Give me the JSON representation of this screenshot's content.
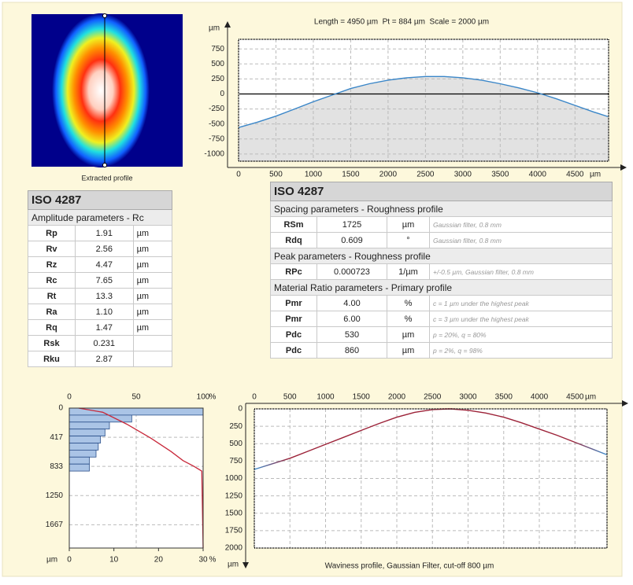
{
  "heatmap": {
    "caption": "Extracted profile"
  },
  "amplitude_table": {
    "title": "ISO 4287",
    "subtitle": "Amplitude parameters - Rc",
    "rows": [
      [
        "Rp",
        "1.91",
        "µm"
      ],
      [
        "Rv",
        "2.56",
        "µm"
      ],
      [
        "Rz",
        "4.47",
        "µm"
      ],
      [
        "Rc",
        "7.65",
        "µm"
      ],
      [
        "Rt",
        "13.3",
        "µm"
      ],
      [
        "Ra",
        "1.10",
        "µm"
      ],
      [
        "Rq",
        "1.47",
        "µm"
      ],
      [
        "Rsk",
        "0.231"
      ],
      [
        "Rku",
        "2.87"
      ]
    ]
  },
  "parameter_table": {
    "title": "ISO 4287",
    "sections": [
      {
        "title": "Spacing parameters - Roughness profile",
        "rows": [
          [
            "RSm",
            "1725",
            "µm",
            "Gaussian filter, 0.8 mm"
          ],
          [
            "Rdq",
            "0.609",
            "°",
            "Gaussian filter, 0.8 mm"
          ]
        ]
      },
      {
        "title": "Peak parameters - Roughness profile",
        "rows": [
          [
            "RPc",
            "0.000723",
            "1/µm",
            "+/-0.5 µm, Gaussian filter, 0.8 mm"
          ]
        ]
      },
      {
        "title": "Material Ratio parameters - Primary profile",
        "rows": [
          [
            "Pmr",
            "4.00",
            "%",
            "c = 1 µm under the highest peak"
          ],
          [
            "Pmr",
            "6.00",
            "%",
            "c = 3 µm under the highest peak"
          ],
          [
            "Pdc",
            "530",
            "µm",
            "p = 20%, q = 80%"
          ],
          [
            "Pdc",
            "860",
            "µm",
            "p = 2%, q = 98%"
          ]
        ]
      }
    ]
  },
  "chart_data": [
    {
      "type": "area",
      "title": "Length = 4950 µm  Pt = 884 µm  Scale = 2000 µm",
      "x_unit": "µm",
      "y_unit": "µm",
      "x": [
        0,
        250,
        500,
        750,
        1000,
        1250,
        1500,
        1750,
        2000,
        2250,
        2500,
        2750,
        3000,
        3250,
        3500,
        3750,
        4000,
        4250,
        4500,
        4750,
        4950
      ],
      "values": [
        -560,
        -470,
        -370,
        -250,
        -130,
        -20,
        90,
        170,
        230,
        270,
        290,
        290,
        270,
        230,
        170,
        100,
        20,
        -80,
        -190,
        -300,
        -380
      ],
      "xlim": [
        0,
        4950
      ],
      "ylim": [
        -1120,
        910
      ],
      "xticks": [
        0,
        500,
        1000,
        1500,
        2000,
        2500,
        3000,
        3500,
        4000,
        4500
      ],
      "yticks": [
        750,
        500,
        250,
        0,
        -250,
        -500,
        -750,
        -1000
      ],
      "color": "#3a86c8",
      "fill": "#e2e2e2",
      "grid": true
    },
    {
      "type": "bearing",
      "x_unit": "%",
      "y_unit": "µm",
      "bins": [
        0,
        100,
        200,
        300,
        400,
        500,
        600,
        700,
        800,
        900
      ],
      "counts": [
        30,
        14,
        9,
        8,
        7,
        6.5,
        6,
        4.5,
        4.5
      ],
      "curve_x": [
        7,
        25,
        43,
        61,
        76,
        85,
        93,
        99,
        100
      ],
      "curve_values": [
        0,
        60,
        230,
        430,
        620,
        750,
        830,
        900,
        2000
      ],
      "xlim": [
        0,
        30
      ],
      "xticks": [
        0,
        10,
        20,
        30
      ],
      "x2lim": [
        0,
        100
      ],
      "x2ticks": [
        0,
        50,
        100
      ],
      "ylim": [
        0,
        2000
      ],
      "yticks": [
        0,
        417,
        833,
        1250,
        1667
      ],
      "bar_color": "#aac4e6",
      "curve_color": "#c8283a",
      "grid": true
    },
    {
      "type": "line",
      "caption": "Waviness profile, Gaussian Filter, cut-off 800 µm",
      "x_unit": "µm",
      "y_unit": "µm",
      "x": [
        0,
        250,
        500,
        750,
        1000,
        1250,
        1500,
        1750,
        2000,
        2250,
        2500,
        2750,
        3000,
        3250,
        3500,
        3750,
        4000,
        4250,
        4500,
        4750,
        4950
      ],
      "values": [
        870,
        790,
        710,
        610,
        510,
        410,
        310,
        210,
        120,
        50,
        10,
        0,
        20,
        60,
        120,
        200,
        290,
        380,
        480,
        580,
        660
      ],
      "xlim": [
        0,
        4950
      ],
      "ylim": [
        0,
        2000
      ],
      "xticks": [
        0,
        500,
        1000,
        1500,
        2000,
        2500,
        3000,
        3500,
        4000,
        4500
      ],
      "yticks": [
        0,
        250,
        500,
        750,
        1000,
        1250,
        1500,
        1750,
        2000
      ],
      "color": "#9c2238",
      "end_color": "#3a8fd0",
      "grid": true
    }
  ]
}
